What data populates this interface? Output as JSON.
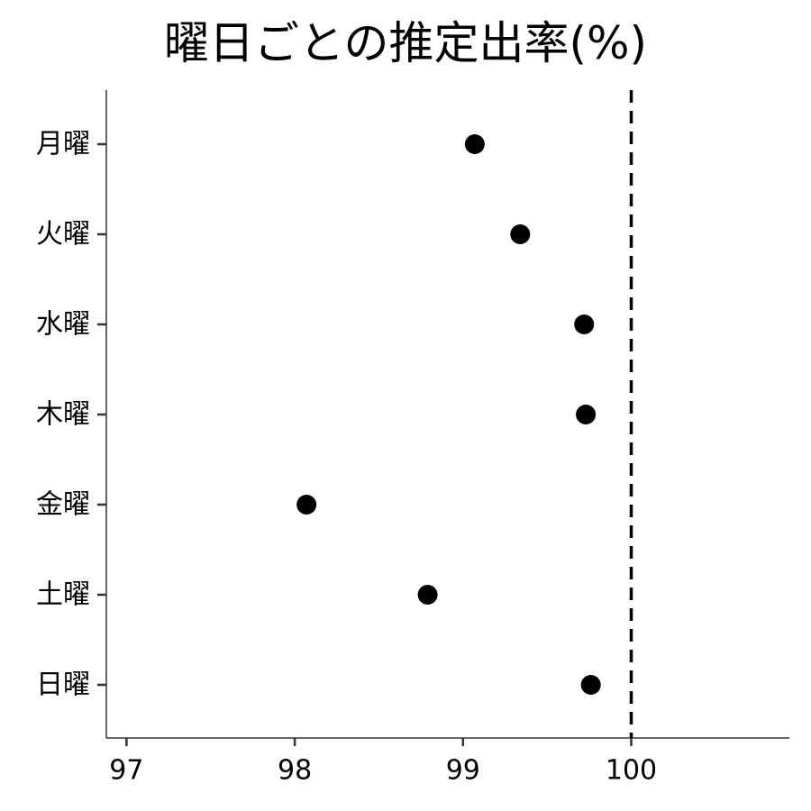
{
  "chart_data": {
    "type": "scatter",
    "title": "曜日ごとの推定出率(%)",
    "xlabel": "",
    "ylabel": "",
    "categories": [
      "月曜",
      "火曜",
      "水曜",
      "木曜",
      "金曜",
      "土曜",
      "日曜"
    ],
    "values": [
      99.07,
      99.34,
      99.72,
      99.73,
      98.07,
      98.79,
      99.76
    ],
    "xlim": [
      96.88,
      100.94
    ],
    "xticks": [
      97,
      98,
      99,
      100
    ],
    "reference_line": {
      "x": 100,
      "style": "dashed"
    },
    "grid": false,
    "colors": {
      "point": "#000000",
      "axis": "#333333",
      "reference": "#000000"
    }
  }
}
